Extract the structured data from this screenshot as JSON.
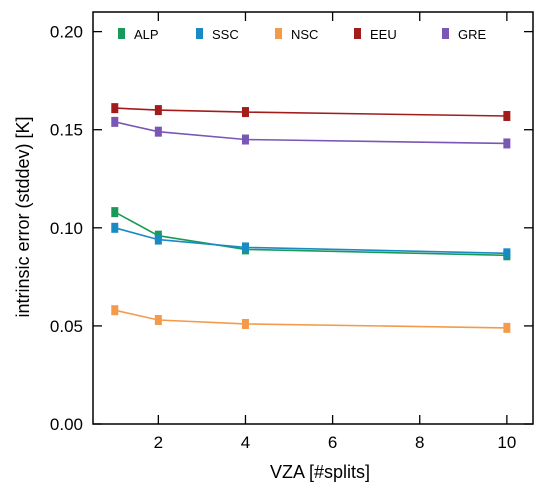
{
  "chart_data": {
    "type": "line",
    "title": "",
    "xlabel": "VZA [#splits]",
    "ylabel": "intrinsic error (stddev) [K]",
    "xlim": [
      0.5,
      10.6
    ],
    "ylim": [
      0.0,
      0.21
    ],
    "x": [
      1,
      2,
      4,
      10
    ],
    "xticks": [
      2,
      4,
      6,
      8,
      10
    ],
    "xtick_labels": [
      "2",
      "4",
      "6",
      "8",
      "10"
    ],
    "yticks": [
      0.0,
      0.05,
      0.1,
      0.15,
      0.2
    ],
    "ytick_labels": [
      "0.00",
      "0.05",
      "0.10",
      "0.15",
      "0.20"
    ],
    "grid": false,
    "legend_position": "top",
    "series": [
      {
        "name": "ALP",
        "color": "#1a9a5a",
        "values": [
          0.108,
          0.096,
          0.089,
          0.086
        ]
      },
      {
        "name": "SSC",
        "color": "#1a8ac4",
        "values": [
          0.1,
          0.094,
          0.09,
          0.087
        ]
      },
      {
        "name": "NSC",
        "color": "#f39b4a",
        "values": [
          0.058,
          0.053,
          0.051,
          0.049
        ]
      },
      {
        "name": "EEU",
        "color": "#a31c1c",
        "values": [
          0.161,
          0.16,
          0.159,
          0.157
        ]
      },
      {
        "name": "GRE",
        "color": "#7a56b5",
        "values": [
          0.154,
          0.149,
          0.145,
          0.143
        ]
      }
    ]
  }
}
